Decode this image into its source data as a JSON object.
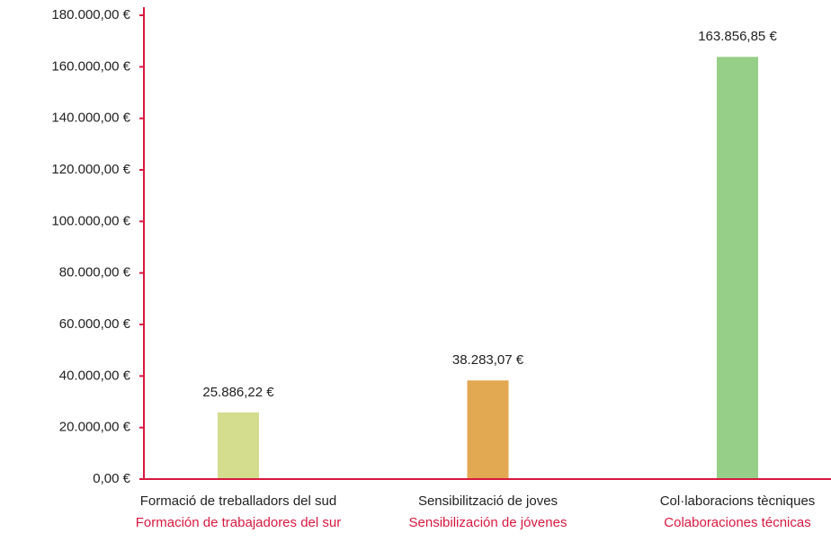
{
  "chart_data": {
    "type": "bar",
    "categories": [
      [
        "Formació de treballadors del sud",
        "Formación de trabajadores del sur"
      ],
      [
        "Sensibilització de joves",
        "Sensibilización de jóvenes"
      ],
      [
        "Col·laboracions tècniques",
        "Colaboraciones técnicas"
      ]
    ],
    "values": [
      25886.22,
      38283.07,
      163856.85
    ],
    "value_labels": [
      "25.886,22 €",
      "38.283,07 €",
      "163.856,85 €"
    ],
    "colors": [
      "#d4dc8e",
      "#e3a852",
      "#96cf87"
    ],
    "axis_color": "#d7193f",
    "ylim": [
      0,
      180000
    ],
    "yticks": [
      {
        "value": 0,
        "label": "0,00 €"
      },
      {
        "value": 20000,
        "label": "20.000,00 €"
      },
      {
        "value": 40000,
        "label": "40.000,00 €"
      },
      {
        "value": 60000,
        "label": "60.000,00 €"
      },
      {
        "value": 80000,
        "label": "80.000,00 €"
      },
      {
        "value": 100000,
        "label": "100.000,00 €"
      },
      {
        "value": 120000,
        "label": "120.000,00 €"
      },
      {
        "value": 140000,
        "label": "140.000,00 €"
      },
      {
        "value": 160000,
        "label": "160.000,00 €"
      },
      {
        "value": 180000,
        "label": "180.000,00 €"
      }
    ]
  }
}
